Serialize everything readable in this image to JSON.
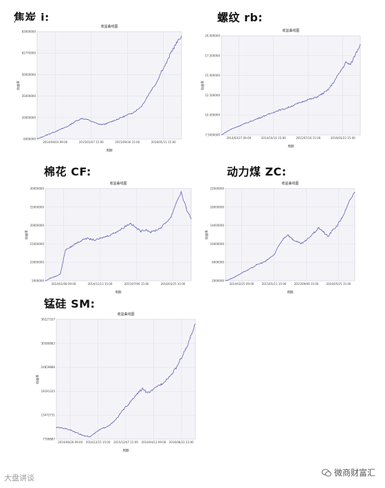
{
  "headings": {
    "jiaotan": "焦炭 j:",
    "luowen": "螺纹 rb:",
    "mianhua": "棉花 CF:",
    "dongliman": "动力煤 ZC:",
    "mengui": "锰硅 SM:"
  },
  "watermark": {
    "left": "大盘讲谈",
    "right": "微商财富汇"
  },
  "colors": {
    "line": "#5b5fb4",
    "grid": "#dfe0ea",
    "plot_bg": "#f4f4f8"
  },
  "chart_data": [
    {
      "id": "jiaotan",
      "type": "line",
      "title": "收益曲线图",
      "xlabel": "周期",
      "ylabel": "收益率",
      "yticks": [
        "6000000",
        "20000000",
        "35000000",
        "50000000",
        "62770000",
        "83000000"
      ],
      "xticks": [
        "2014/04/03 09:00",
        "2015/01/07 15:00",
        "2015/09/30 15:00",
        "2016/05/11 15:00"
      ],
      "grid": true,
      "y": [
        0.0,
        0.02,
        0.04,
        0.06,
        0.08,
        0.1,
        0.12,
        0.15,
        0.18,
        0.2,
        0.19,
        0.17,
        0.15,
        0.14,
        0.15,
        0.17,
        0.19,
        0.21,
        0.23,
        0.25,
        0.28,
        0.32,
        0.4,
        0.48,
        0.55,
        0.66,
        0.74,
        0.85,
        0.93,
        1.0
      ]
    },
    {
      "id": "luowen",
      "type": "line",
      "title": "收益曲线图",
      "xlabel": "周期",
      "ylabel": "收益率",
      "yticks": [
        "7.5000000",
        "10.000000",
        "12.500000",
        "15.000000",
        "17.500000",
        "20.000000"
      ],
      "xticks": [
        "2014/03/27 09:00",
        "2014/10/10 15:00",
        "2015/07/16 15:00",
        "2016/03/23 15:00"
      ],
      "grid": true,
      "y": [
        0.0,
        0.03,
        0.06,
        0.08,
        0.1,
        0.12,
        0.14,
        0.16,
        0.18,
        0.2,
        0.22,
        0.24,
        0.26,
        0.27,
        0.29,
        0.31,
        0.33,
        0.35,
        0.37,
        0.38,
        0.4,
        0.43,
        0.46,
        0.52,
        0.6,
        0.68,
        0.76,
        0.74,
        0.85,
        0.95
      ]
    },
    {
      "id": "mianhua",
      "type": "line",
      "title": "收益曲线图",
      "xlabel": "周期",
      "ylabel": "收益率",
      "yticks": [
        "5000000",
        "10000000",
        "15000000",
        "20000000",
        "25000000",
        "30000000"
      ],
      "xticks": [
        "2014/01/08 09:00",
        "2014/11/13 15:00",
        "2015/07/06 15:00",
        "2016/03/25 15:00"
      ],
      "grid": true,
      "y": [
        0.0,
        0.03,
        0.05,
        0.08,
        0.35,
        0.38,
        0.42,
        0.45,
        0.48,
        0.47,
        0.46,
        0.48,
        0.5,
        0.52,
        0.55,
        0.58,
        0.62,
        0.65,
        0.6,
        0.56,
        0.58,
        0.55,
        0.57,
        0.6,
        0.66,
        0.72,
        0.88,
        1.0,
        0.82,
        0.7
      ]
    },
    {
      "id": "dongliman",
      "type": "line",
      "title": "收益曲线图",
      "xlabel": "周期",
      "ylabel": "收益率",
      "yticks": [
        "2000000",
        "6000000",
        "10000000",
        "14000000",
        "18000000",
        "22000000"
      ],
      "xticks": [
        "2014/02/25 09:00",
        "2015/01/11 15:00",
        "2015/09/06 15:00",
        "2016/05/25 15:00"
      ],
      "grid": true,
      "y": [
        0.0,
        0.02,
        0.04,
        0.07,
        0.1,
        0.12,
        0.15,
        0.18,
        0.2,
        0.22,
        0.26,
        0.3,
        0.4,
        0.48,
        0.52,
        0.47,
        0.44,
        0.42,
        0.45,
        0.5,
        0.55,
        0.6,
        0.55,
        0.5,
        0.57,
        0.62,
        0.7,
        0.8,
        0.92,
        1.0
      ]
    },
    {
      "id": "mengui",
      "type": "line",
      "title": "收益曲线图",
      "xlabel": "周期",
      "ylabel": "收益率",
      "yticks": [
        "7799887",
        "13472731",
        "19191335",
        "24859886",
        "30580883",
        "36227337"
      ],
      "xticks": [
        "2014/08/26 09:00",
        "2014/12/15 15:00",
        "2015/12/07 15:00",
        "2016/04/13 09:00",
        "2016/08/21 13:00"
      ],
      "grid": true,
      "y": [
        0.1,
        0.1,
        0.09,
        0.08,
        0.06,
        0.04,
        0.03,
        0.02,
        0.05,
        0.08,
        0.1,
        0.12,
        0.15,
        0.2,
        0.26,
        0.3,
        0.35,
        0.4,
        0.44,
        0.4,
        0.42,
        0.46,
        0.48,
        0.52,
        0.56,
        0.62,
        0.7,
        0.78,
        0.88,
        1.0
      ]
    }
  ]
}
